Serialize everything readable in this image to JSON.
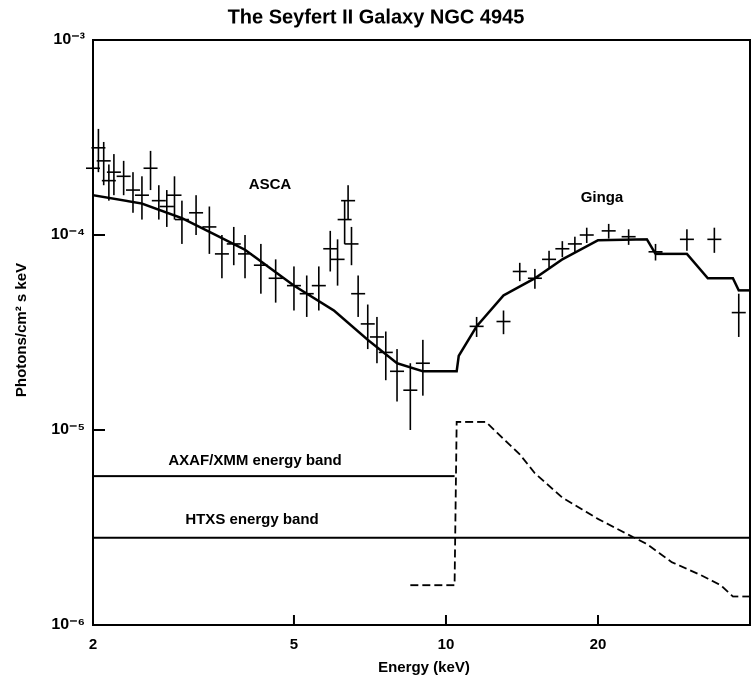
{
  "chart_data": {
    "type": "line",
    "title": "The Seyfert II Galaxy NGC 4945",
    "xlabel": "Energy (keV)",
    "ylabel": "Photons/cm² s keV",
    "xscale": "log",
    "yscale": "log",
    "xlim": [
      2,
      40
    ],
    "ylim": [
      1e-06,
      0.001
    ],
    "xticks": [
      2,
      5,
      10,
      20
    ],
    "yticks": [
      {
        "value": 0.001,
        "label": "10⁻³"
      },
      {
        "value": 0.0001,
        "label": "10⁻⁴"
      },
      {
        "value": 1e-05,
        "label": "10⁻⁵"
      },
      {
        "value": 1e-06,
        "label": "10⁻⁶"
      }
    ],
    "color": "#000000",
    "series": [
      {
        "style": "solid",
        "x": [
          2,
          2.5,
          3,
          3.5,
          4,
          5,
          6,
          7,
          8,
          9,
          10.5,
          10.6,
          11.5,
          13,
          15,
          17,
          20,
          25,
          26,
          30,
          33,
          37,
          38,
          40
        ],
        "values": [
          0.00016,
          0.000145,
          0.000122,
          0.0001,
          8.4e-05,
          5.5e-05,
          4.1e-05,
          2.9e-05,
          2.2e-05,
          2e-05,
          2e-05,
          2.4e-05,
          3.4e-05,
          4.9e-05,
          6e-05,
          7.5e-05,
          9.4e-05,
          9.5e-05,
          8e-05,
          8e-05,
          6e-05,
          6e-05,
          5.2e-05,
          5.2e-05
        ]
      },
      {
        "style": "dashed",
        "x": [
          8.5,
          10.4,
          10.5,
          12,
          13,
          14,
          15,
          17,
          20,
          23,
          25,
          28,
          32,
          35,
          37,
          40
        ],
        "values": [
          1.6e-06,
          1.6e-06,
          1.1e-05,
          1.1e-05,
          9e-06,
          7.5e-06,
          6e-06,
          4.5e-06,
          3.5e-06,
          2.9e-06,
          2.6e-06,
          2.1e-06,
          1.8e-06,
          1.6e-06,
          1.4e-06,
          1.4e-06
        ]
      },
      {
        "name": "ASCA",
        "style": "cross",
        "x": [
          2.0,
          2.05,
          2.1,
          2.15,
          2.2,
          2.3,
          2.4,
          2.5,
          2.6,
          2.7,
          2.8,
          2.9,
          3.0,
          3.2,
          3.4,
          3.6,
          3.8,
          4.0,
          4.3,
          4.6,
          5.0,
          5.3,
          5.6,
          5.9,
          6.1,
          6.3,
          6.4,
          6.5,
          6.7,
          7.0,
          7.3,
          7.6,
          8.0,
          8.5,
          9.0
        ],
        "values": [
          0.00022,
          0.00028,
          0.00024,
          0.00019,
          0.00021,
          0.0002,
          0.00017,
          0.00016,
          0.00022,
          0.00015,
          0.00014,
          0.00016,
          0.00012,
          0.00013,
          0.00011,
          8e-05,
          9e-05,
          8e-05,
          7e-05,
          6e-05,
          5.5e-05,
          5e-05,
          5.5e-05,
          8.5e-05,
          7.5e-05,
          0.00012,
          0.00015,
          9e-05,
          5e-05,
          3.5e-05,
          3e-05,
          2.5e-05,
          2e-05,
          1.6e-05,
          2.2e-05
        ],
        "yerr": [
          5e-05,
          7e-05,
          6e-05,
          4e-05,
          5e-05,
          4e-05,
          4e-05,
          4e-05,
          5e-05,
          3e-05,
          3e-05,
          4e-05,
          3e-05,
          3e-05,
          3e-05,
          2e-05,
          2e-05,
          2e-05,
          2e-05,
          1.5e-05,
          1.4e-05,
          1.2e-05,
          1.4e-05,
          2e-05,
          2e-05,
          3e-05,
          3e-05,
          2e-05,
          1.2e-05,
          9e-06,
          8e-06,
          7e-06,
          6e-06,
          6e-06,
          7e-06
        ]
      },
      {
        "name": "Ginga",
        "style": "cross",
        "x": [
          11.5,
          13,
          14,
          15,
          16,
          17,
          18,
          19,
          21,
          23,
          26,
          30,
          34,
          38
        ],
        "values": [
          3.4e-05,
          3.6e-05,
          6.5e-05,
          6e-05,
          7.5e-05,
          8.5e-05,
          9e-05,
          0.0001,
          0.000105,
          9.8e-05,
          8.2e-05,
          9.5e-05,
          9.5e-05,
          4e-05
        ],
        "yerr": [
          4e-06,
          5e-06,
          7e-06,
          7e-06,
          8e-06,
          8e-06,
          8e-06,
          9e-06,
          9e-06,
          9e-06,
          8e-06,
          1.2e-05,
          1.4e-05,
          1e-05
        ]
      },
      {
        "name": "AXAF/XMM energy band",
        "style": "band",
        "x": [
          2,
          10.4
        ],
        "values": [
          5.8e-06,
          5.8e-06
        ]
      },
      {
        "name": "HTXS energy band",
        "style": "band",
        "x": [
          2,
          40
        ],
        "values": [
          2.8e-06,
          2.8e-06
        ]
      }
    ]
  }
}
